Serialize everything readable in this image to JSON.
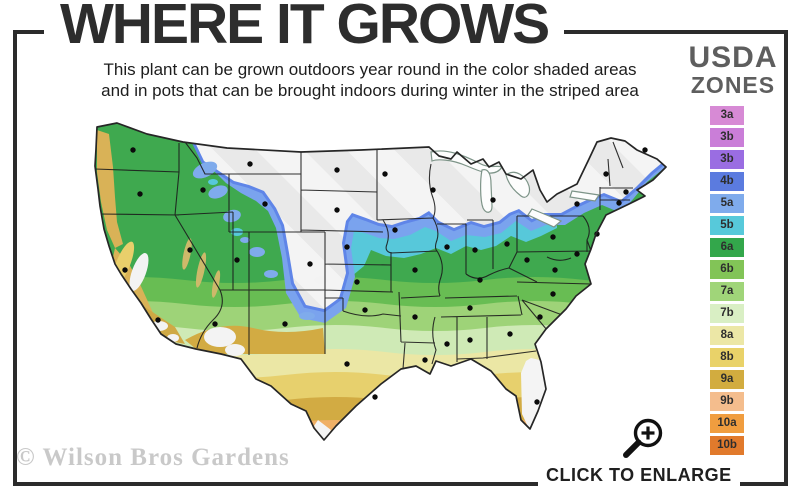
{
  "header": {
    "title": "WHERE IT GROWS",
    "subtitle_line1": "This plant can be grown outdoors year round in the color shaded areas",
    "subtitle_line2": "and in pots that can be brought indoors during winter in the striped area"
  },
  "legend": {
    "title_top": "USDA",
    "title_bottom": "ZONES",
    "zones": [
      {
        "label": "3a",
        "color": "#d78ad5"
      },
      {
        "label": "3b",
        "color": "#ca7ed8"
      },
      {
        "label": "3b",
        "color": "#9a6de2"
      },
      {
        "label": "4b",
        "color": "#5b7bdf"
      },
      {
        "label": "5a",
        "color": "#7fabec"
      },
      {
        "label": "5b",
        "color": "#57c9da"
      },
      {
        "label": "6a",
        "color": "#33a74b"
      },
      {
        "label": "6b",
        "color": "#82c457"
      },
      {
        "label": "7a",
        "color": "#a0d579"
      },
      {
        "label": "7b",
        "color": "#d9efc4"
      },
      {
        "label": "8a",
        "color": "#ece7a6"
      },
      {
        "label": "8b",
        "color": "#e9d269"
      },
      {
        "label": "9a",
        "color": "#d2ac3f"
      },
      {
        "label": "9b",
        "color": "#f4bd8d"
      },
      {
        "label": "10a",
        "color": "#f09d3f"
      },
      {
        "label": "10b",
        "color": "#e17a2c"
      }
    ]
  },
  "map": {
    "striped_region_meaning": "striped area",
    "frame_color": "#2b2b2b"
  },
  "icons": {
    "enlarge": "magnifying-glass-plus"
  },
  "footer": {
    "watermark": "© Wilson Bros Gardens",
    "cta": "CLICK TO ENLARGE"
  }
}
